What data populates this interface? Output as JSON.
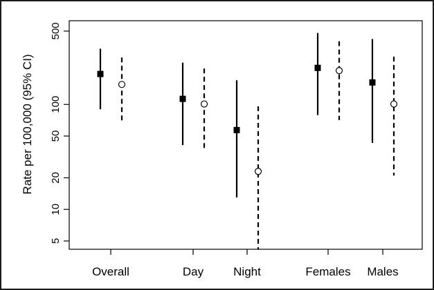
{
  "chart_data": {
    "type": "scatter",
    "title": "",
    "xlabel": "",
    "ylabel": "Rate per 100,000 (95% CI)",
    "y_scale": "log",
    "ylim": [
      4,
      600
    ],
    "y_ticks": [
      5,
      10,
      20,
      50,
      100,
      500
    ],
    "y_tick_labels": [
      "5",
      "10",
      "20",
      "50",
      "100",
      "500"
    ],
    "grid": false,
    "categories": [
      "Overall",
      "Day",
      "Night",
      "Females",
      "Males"
    ],
    "series": [
      {
        "marker": "filled-square",
        "line": "solid",
        "points": [
          {
            "category": "Overall",
            "estimate": 195,
            "lower": 90,
            "upper": 340
          },
          {
            "category": "Day",
            "estimate": 113,
            "lower": 41,
            "upper": 250
          },
          {
            "category": "Night",
            "estimate": 57,
            "lower": 13,
            "upper": 170
          },
          {
            "category": "Females",
            "estimate": 223,
            "lower": 79,
            "upper": 480
          },
          {
            "category": "Males",
            "estimate": 162,
            "lower": 43,
            "upper": 420
          }
        ]
      },
      {
        "marker": "open-circle",
        "line": "dashed",
        "points": [
          {
            "category": "Overall",
            "estimate": 155,
            "lower": 67,
            "upper": 280
          },
          {
            "category": "Day",
            "estimate": 101,
            "lower": 37,
            "upper": 220
          },
          {
            "category": "Night",
            "estimate": 23,
            "lower": 4,
            "upper": 96
          },
          {
            "category": "Females",
            "estimate": 210,
            "lower": 71,
            "upper": 400
          },
          {
            "category": "Males",
            "estimate": 101,
            "lower": 21,
            "upper": 285
          }
        ]
      }
    ]
  }
}
